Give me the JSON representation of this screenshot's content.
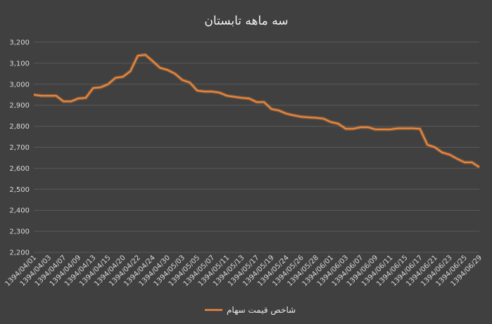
{
  "chart_data": {
    "type": "line",
    "title": "سه ماهه تابستان",
    "xlabel": "",
    "ylabel": "",
    "ylim": [
      2200,
      3200
    ],
    "y_ticks": [
      "2,200",
      "2,300",
      "2,400",
      "2,500",
      "2,600",
      "2,700",
      "2,800",
      "2,900",
      "3,000",
      "3,100",
      "3,200"
    ],
    "grid": "horizontal",
    "legend_position": "bottom",
    "line_color": "#f08a3c",
    "x_tick_labels": [
      "1394/04/01",
      "1394/04/03",
      "1394/04/07",
      "1394/04/09",
      "1394/04/13",
      "1394/04/15",
      "1394/04/20",
      "1394/04/22",
      "1394/04/24",
      "1394/04/30",
      "1394/05/03",
      "1394/05/05",
      "1394/05/07",
      "1394/05/11",
      "1394/05/13",
      "1394/05/17",
      "1394/05/19",
      "1394/05/24",
      "1394/05/26",
      "1394/05/28",
      "1394/06/01",
      "1394/06/03",
      "1394/06/07",
      "1394/06/09",
      "1394/06/11",
      "1394/06/15",
      "1394/06/17",
      "1394/06/21",
      "1394/06/23",
      "1394/06/25",
      "1394/06/29"
    ],
    "series": [
      {
        "name": "شاخص قیمت سهام",
        "values": [
          2950,
          2945,
          2945,
          2945,
          2918,
          2918,
          2932,
          2935,
          2982,
          2985,
          3000,
          3030,
          3035,
          3062,
          3135,
          3140,
          3110,
          3078,
          3068,
          3050,
          3020,
          3008,
          2970,
          2965,
          2965,
          2960,
          2945,
          2940,
          2935,
          2932,
          2915,
          2915,
          2882,
          2875,
          2860,
          2852,
          2845,
          2842,
          2840,
          2836,
          2820,
          2812,
          2788,
          2788,
          2795,
          2795,
          2785,
          2785,
          2785,
          2790,
          2790,
          2790,
          2788,
          2712,
          2700,
          2675,
          2665,
          2645,
          2628,
          2628,
          2605
        ]
      }
    ]
  }
}
